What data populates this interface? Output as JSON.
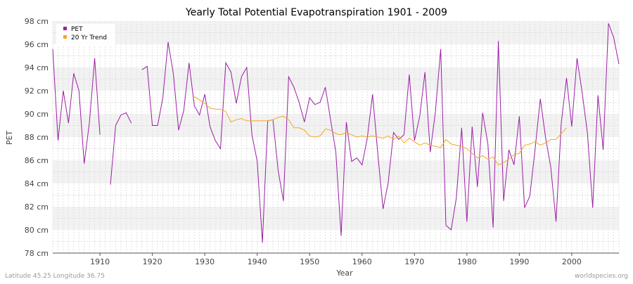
{
  "chart_data": {
    "type": "line",
    "title": "Yearly Total Potential Evapotranspiration 1901 - 2009",
    "xlabel": "Year",
    "ylabel": "PET",
    "xlim": [
      1901,
      2009
    ],
    "ylim": [
      78,
      98
    ],
    "y_unit": "cm",
    "y_ticks": [
      78,
      80,
      82,
      84,
      86,
      88,
      90,
      92,
      94,
      96,
      98
    ],
    "x_ticks": [
      1910,
      1920,
      1930,
      1940,
      1950,
      1960,
      1970,
      1980,
      1990,
      2000
    ],
    "grid": true,
    "legend_position": "top-left",
    "series": [
      {
        "name": "PET",
        "color": "#9b1fa5",
        "x": [
          1901,
          1902,
          1903,
          1904,
          1905,
          1906,
          1907,
          1908,
          1909,
          1910,
          1911,
          1912,
          1913,
          1914,
          1915,
          1916,
          1917,
          1918,
          1919,
          1920,
          1921,
          1922,
          1923,
          1924,
          1925,
          1926,
          1927,
          1928,
          1929,
          1930,
          1931,
          1932,
          1933,
          1934,
          1935,
          1936,
          1937,
          1938,
          1939,
          1940,
          1941,
          1942,
          1943,
          1944,
          1945,
          1946,
          1947,
          1948,
          1949,
          1950,
          1951,
          1952,
          1953,
          1954,
          1955,
          1956,
          1957,
          1958,
          1959,
          1960,
          1961,
          1962,
          1963,
          1964,
          1965,
          1966,
          1967,
          1968,
          1969,
          1970,
          1971,
          1972,
          1973,
          1974,
          1975,
          1976,
          1977,
          1978,
          1979,
          1980,
          1981,
          1982,
          1983,
          1984,
          1985,
          1986,
          1987,
          1988,
          1989,
          1990,
          1991,
          1992,
          1993,
          1994,
          1995,
          1996,
          1997,
          1998,
          1999,
          2000,
          2001,
          2002,
          2003,
          2004,
          2005,
          2006,
          2007,
          2008,
          2009
        ],
        "values": [
          95.6,
          87.7,
          92.0,
          89.2,
          93.5,
          92.0,
          85.7,
          89.3,
          94.8,
          88.2,
          null,
          83.9,
          89.0,
          89.9,
          90.1,
          89.2,
          null,
          93.8,
          94.1,
          89.0,
          89.0,
          91.4,
          96.2,
          93.5,
          88.6,
          90.3,
          94.4,
          90.7,
          89.9,
          91.7,
          88.9,
          87.7,
          87.0,
          94.4,
          93.6,
          90.9,
          93.2,
          94.0,
          88.2,
          85.9,
          78.9,
          89.4,
          89.5,
          85.1,
          82.5,
          93.2,
          92.3,
          91.0,
          89.3,
          91.4,
          90.8,
          91.0,
          92.3,
          89.5,
          86.7,
          79.5,
          89.3,
          85.9,
          86.2,
          85.6,
          87.9,
          91.7,
          86.6,
          81.8,
          84.1,
          88.4,
          87.8,
          88.2,
          93.4,
          87.7,
          89.8,
          93.6,
          86.7,
          90.2,
          95.6,
          80.4,
          80.0,
          82.8,
          88.8,
          80.7,
          88.9,
          83.7,
          90.1,
          87.4,
          80.2,
          96.3,
          82.5,
          86.9,
          85.6,
          89.8,
          81.9,
          82.9,
          86.9,
          91.3,
          88.0,
          85.4,
          80.7,
          89.2,
          93.1,
          88.9,
          94.8,
          91.8,
          88.3,
          81.9,
          91.6,
          86.9,
          97.8,
          96.6,
          94.3
        ]
      },
      {
        "name": "20 Yr Trend",
        "color": "#f5a623",
        "x": [
          1928,
          1929,
          1930,
          1931,
          1932,
          1933,
          1934,
          1935,
          1936,
          1937,
          1938,
          1939,
          1940,
          1941,
          1942,
          1943,
          1944,
          1945,
          1946,
          1947,
          1948,
          1949,
          1950,
          1951,
          1952,
          1953,
          1954,
          1955,
          1956,
          1957,
          1958,
          1959,
          1960,
          1961,
          1962,
          1963,
          1964,
          1965,
          1966,
          1967,
          1968,
          1969,
          1970,
          1971,
          1972,
          1973,
          1974,
          1975,
          1976,
          1977,
          1978,
          1979,
          1980,
          1981,
          1982,
          1983,
          1984,
          1985,
          1986,
          1987,
          1988,
          1989,
          1990,
          1991,
          1992,
          1993,
          1994,
          1995,
          1996,
          1997,
          1998,
          1999
        ],
        "values": [
          91.5,
          91.2,
          90.9,
          90.5,
          90.4,
          90.4,
          90.2,
          89.3,
          89.5,
          89.6,
          89.4,
          89.4,
          89.4,
          89.4,
          89.4,
          89.5,
          89.7,
          89.8,
          89.5,
          88.8,
          88.8,
          88.6,
          88.1,
          88.0,
          88.1,
          88.7,
          88.6,
          88.3,
          88.2,
          88.4,
          88.2,
          88.0,
          88.1,
          88.0,
          88.1,
          88.0,
          87.9,
          88.1,
          87.8,
          88.1,
          87.5,
          87.9,
          87.6,
          87.3,
          87.5,
          87.3,
          87.2,
          87.1,
          87.8,
          87.4,
          87.3,
          87.2,
          87.0,
          86.6,
          86.2,
          86.4,
          86.1,
          86.3,
          85.6,
          85.8,
          86.1,
          86.5,
          86.6,
          87.3,
          87.4,
          87.6,
          87.3,
          87.5,
          87.8,
          87.8,
          88.3,
          88.8
        ]
      }
    ],
    "legend_labels": [
      "PET",
      "20 Yr Trend"
    ],
    "footer_left": "Latitude 45.25 Longitude 36.75",
    "footer_right": "worldspecies.org"
  }
}
